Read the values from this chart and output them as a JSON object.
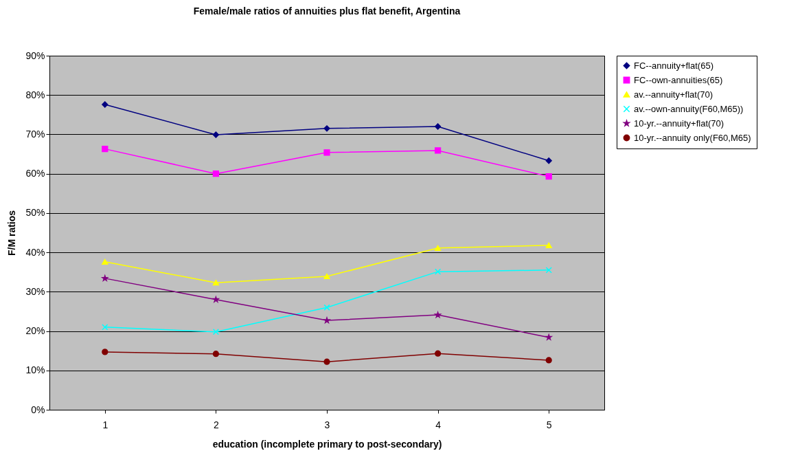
{
  "chart_data": {
    "type": "line",
    "title": "Female/male ratios of annuities plus flat benefit, Argentina",
    "xlabel": "education (incomplete primary to post-secondary)",
    "ylabel": "F/M ratios",
    "categories": [
      "1",
      "2",
      "3",
      "4",
      "5"
    ],
    "series": [
      {
        "name": "FC--annuity+flat(65)",
        "color": "#000080",
        "marker": "diamond",
        "values": [
          77.6,
          69.9,
          71.5,
          72.0,
          63.3
        ]
      },
      {
        "name": "FC--own-annuities(65)",
        "color": "#ff00ff",
        "marker": "square",
        "values": [
          66.3,
          60.0,
          65.4,
          65.9,
          59.3
        ]
      },
      {
        "name": "av.--annuity+flat(70)",
        "color": "#ffff00",
        "marker": "triangle",
        "values": [
          37.6,
          32.3,
          33.9,
          41.1,
          41.8
        ]
      },
      {
        "name": "av.--own-annuity(F60,M65))",
        "color": "#00ffff",
        "marker": "cross",
        "values": [
          21.0,
          19.8,
          26.0,
          35.1,
          35.5
        ]
      },
      {
        "name": "10-yr.--annuity+flat(70)",
        "color": "#800080",
        "marker": "star",
        "values": [
          33.4,
          28.0,
          22.7,
          24.1,
          18.4
        ]
      },
      {
        "name": "10-yr.--annuity only(F60,M65)",
        "color": "#800000",
        "marker": "circle",
        "values": [
          14.7,
          14.2,
          12.2,
          14.3,
          12.6
        ]
      }
    ],
    "ylim": [
      0,
      90
    ],
    "yticks": [
      {
        "value": 0,
        "label": "0%"
      },
      {
        "value": 10,
        "label": "10%"
      },
      {
        "value": 20,
        "label": "20%"
      },
      {
        "value": 30,
        "label": "30%"
      },
      {
        "value": 40,
        "label": "40%"
      },
      {
        "value": 50,
        "label": "50%"
      },
      {
        "value": 60,
        "label": "60%"
      },
      {
        "value": 70,
        "label": "70%"
      },
      {
        "value": 80,
        "label": "80%"
      },
      {
        "value": 90,
        "label": "90%"
      }
    ],
    "grid": "y",
    "legend": "right",
    "line_style": "solid"
  }
}
